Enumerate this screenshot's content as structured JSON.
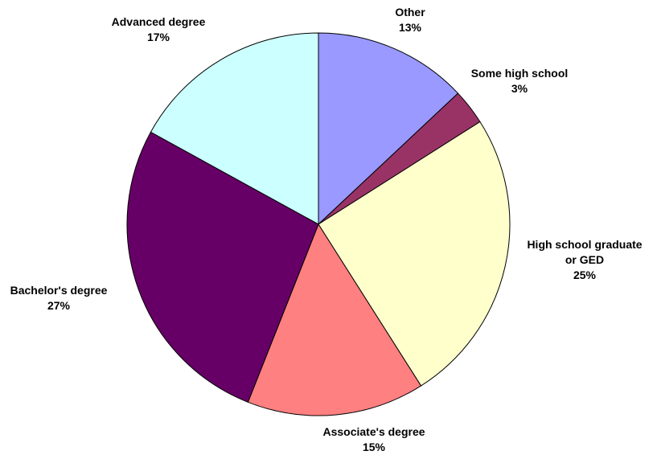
{
  "chart_data": {
    "type": "pie",
    "categories": [
      "Other",
      "Some high school",
      "High school graduate\nor GED",
      "Associate's degree",
      "Bachelor's degree",
      "Advanced degree"
    ],
    "values": [
      13,
      3,
      25,
      15,
      27,
      17
    ],
    "value_labels": [
      "13%",
      "3%",
      "25%",
      "15%",
      "27%",
      "17%"
    ],
    "colors": [
      "#9999ff",
      "#993366",
      "#ffffcc",
      "#ff8080",
      "#660066",
      "#ccffff"
    ]
  }
}
